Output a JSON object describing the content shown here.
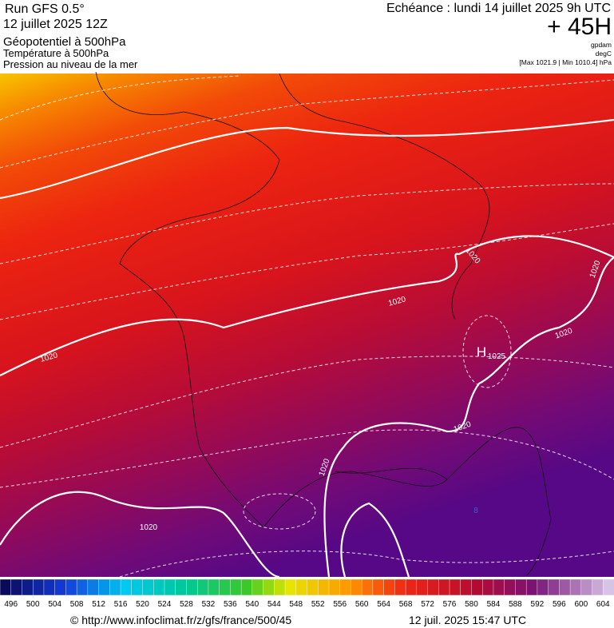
{
  "header": {
    "left": [
      "Run GFS 0.5°",
      "12 juillet 2025 12Z",
      "Géopotentiel à 500hPa",
      "Température à 500hPa",
      "Pression au niveau de la mer"
    ],
    "right": {
      "echeance": "Echéance : lundi 14 juillet 2025 9h UTC",
      "lead": "+ 45H",
      "units": [
        "gpdam",
        "degC",
        "[Max 1021.9 | Min 1010.4] hPa"
      ]
    }
  },
  "map": {
    "labels": [
      "1020",
      "1020",
      "1020",
      "1020",
      "1020",
      "1020",
      "1020",
      "1020",
      "H",
      "1025",
      "8"
    ]
  },
  "colorbar": {
    "ticks": [
      496,
      500,
      504,
      508,
      512,
      516,
      520,
      524,
      528,
      532,
      536,
      540,
      544,
      548,
      552,
      556,
      560,
      564,
      568,
      572,
      576,
      580,
      584,
      588,
      592,
      596,
      600,
      604
    ]
  },
  "footer": {
    "url": "© http://www.infoclimat.fr/z/gfs/france/500/45",
    "timestamp": "12 juil. 2025 15:47 UTC"
  }
}
